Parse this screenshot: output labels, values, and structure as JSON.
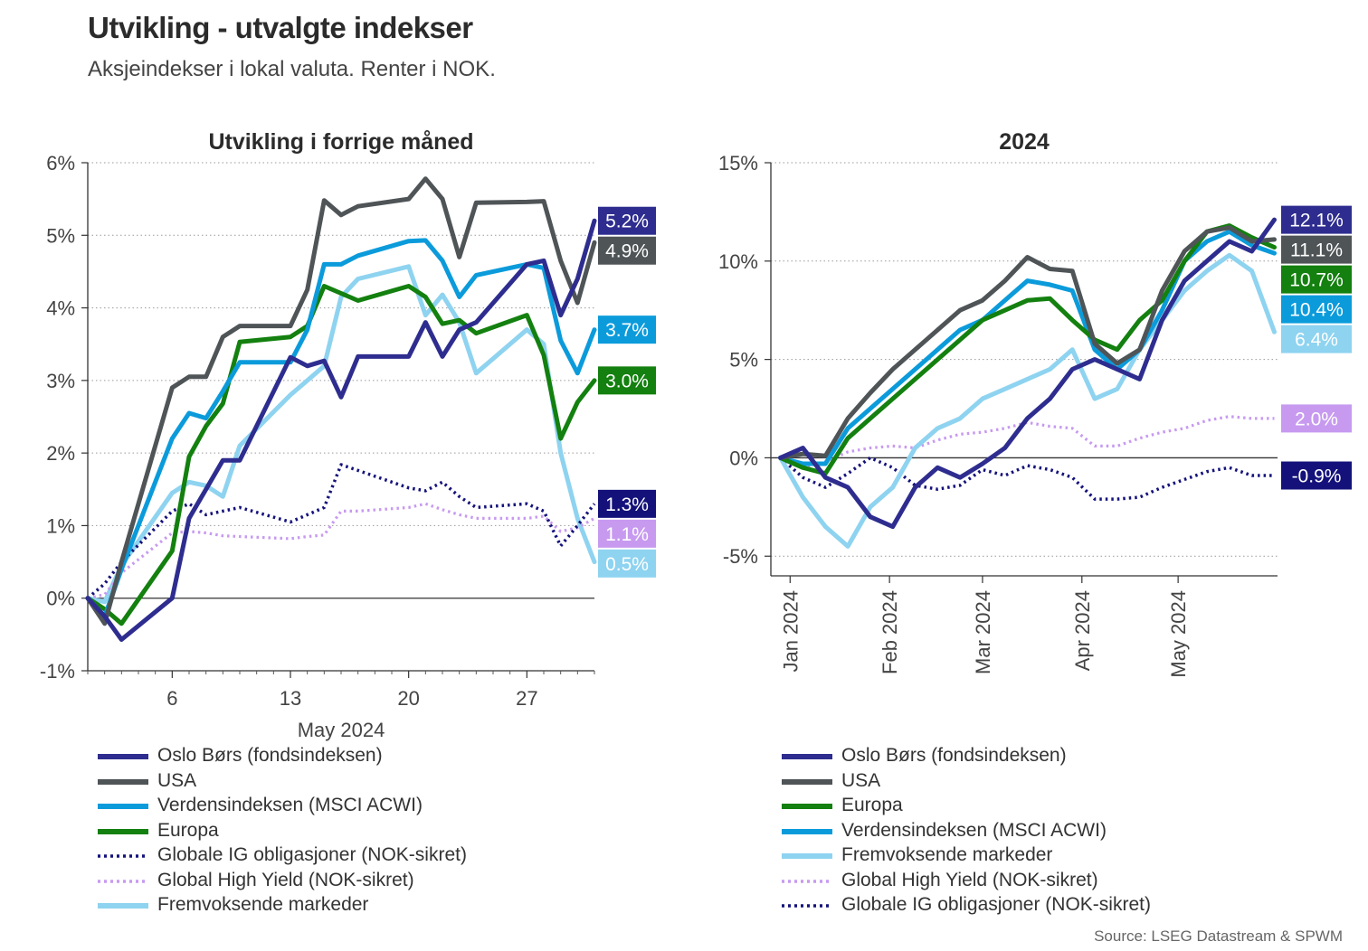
{
  "title": "Utvikling - utvalgte indekser",
  "subtitle": "Aksjeindekser i lokal valuta. Renter i NOK.",
  "source": "Source: LSEG Datastream & SPWM",
  "colors": {
    "oslo": "#2e2d8f",
    "usa": "#4f5457",
    "world": "#0b9bdb",
    "europe": "#13800f",
    "ig": "#14127a",
    "hy": "#c79af0",
    "em": "#8ed3f0"
  },
  "chart_data": [
    {
      "type": "line",
      "title": "Utvikling i forrige måned",
      "xlabel": "May 2024",
      "ylabel": "",
      "x": [
        1,
        2,
        3,
        6,
        7,
        8,
        9,
        10,
        13,
        14,
        15,
        16,
        17,
        20,
        21,
        22,
        23,
        24,
        27,
        28,
        29,
        30,
        31
      ],
      "x_ticks": [
        6,
        13,
        20,
        27
      ],
      "x_tick_labels": [
        "6",
        "13",
        "20",
        "27"
      ],
      "ylim": [
        -1,
        6
      ],
      "y_ticks": [
        -1,
        0,
        1,
        2,
        3,
        4,
        5,
        6
      ],
      "y_tick_labels": [
        "-1%",
        "0%",
        "1%",
        "2%",
        "3%",
        "4%",
        "5%",
        "6%"
      ],
      "grid": true,
      "series": [
        {
          "name": "Oslo Børs (fondsindeksen)",
          "key": "oslo",
          "style": "solid",
          "end_label": "5.2%",
          "values": [
            0.0,
            -0.25,
            -0.57,
            0.0,
            1.1,
            1.5,
            1.9,
            1.9,
            3.32,
            3.2,
            3.27,
            2.77,
            3.33,
            3.33,
            3.8,
            3.33,
            3.7,
            3.8,
            4.6,
            4.65,
            3.9,
            4.4,
            5.2
          ]
        },
        {
          "name": "USA",
          "key": "usa",
          "style": "solid",
          "end_label": "4.9%",
          "values": [
            0.0,
            -0.35,
            0.5,
            2.9,
            3.05,
            3.05,
            3.6,
            3.75,
            3.75,
            4.25,
            5.48,
            5.28,
            5.4,
            5.5,
            5.78,
            5.5,
            4.7,
            5.45,
            5.46,
            5.47,
            4.65,
            4.07,
            4.9
          ]
        },
        {
          "name": "Verdensindeksen (MSCI ACWI)",
          "key": "world",
          "style": "solid",
          "end_label": "3.7%",
          "values": [
            0.0,
            -0.25,
            0.4,
            2.2,
            2.55,
            2.48,
            2.85,
            3.25,
            3.25,
            3.7,
            4.6,
            4.6,
            4.72,
            4.92,
            4.93,
            4.65,
            4.15,
            4.45,
            4.6,
            4.55,
            3.55,
            3.1,
            3.7
          ]
        },
        {
          "name": "Europa",
          "key": "europe",
          "style": "solid",
          "end_label": "3.0%",
          "values": [
            0.0,
            -0.15,
            -0.35,
            0.65,
            1.95,
            2.37,
            2.68,
            3.53,
            3.6,
            3.75,
            4.3,
            4.2,
            4.1,
            4.3,
            4.15,
            3.78,
            3.83,
            3.65,
            3.9,
            3.35,
            2.2,
            2.7,
            3.0
          ]
        },
        {
          "name": "Globale IG obligasjoner (NOK-sikret)",
          "key": "ig",
          "style": "dotted",
          "end_label": "1.3%",
          "values": [
            0.0,
            0.2,
            0.5,
            1.2,
            1.3,
            1.15,
            1.2,
            1.25,
            1.05,
            1.15,
            1.25,
            1.84,
            1.76,
            1.52,
            1.48,
            1.6,
            1.4,
            1.25,
            1.3,
            1.2,
            0.72,
            1.0,
            1.3
          ]
        },
        {
          "name": "Global High Yield (NOK-sikret)",
          "key": "hy",
          "style": "dotted",
          "end_label": "1.1%",
          "values": [
            0.0,
            0.05,
            0.35,
            0.9,
            0.92,
            0.9,
            0.86,
            0.85,
            0.82,
            0.85,
            0.87,
            1.2,
            1.2,
            1.25,
            1.3,
            1.22,
            1.15,
            1.1,
            1.1,
            1.13,
            0.92,
            0.97,
            1.1
          ]
        },
        {
          "name": "Fremvoksende markeder",
          "key": "em",
          "style": "solid",
          "end_label": "0.5%",
          "values": [
            0.0,
            -0.05,
            0.45,
            1.45,
            1.6,
            1.55,
            1.4,
            2.1,
            2.8,
            3.0,
            3.2,
            4.15,
            4.4,
            4.57,
            3.9,
            4.18,
            3.8,
            3.1,
            3.7,
            3.5,
            2.0,
            1.1,
            0.5
          ]
        }
      ],
      "legend_order": [
        "Oslo Børs (fondsindeksen)",
        "USA",
        "Verdensindeksen (MSCI ACWI)",
        "Europa",
        "Globale IG obligasjoner (NOK-sikret)",
        "Global High Yield (NOK-sikret)",
        "Fremvoksende markeder"
      ],
      "legend": "bottom"
    },
    {
      "type": "line",
      "title": "2024",
      "xlabel": "",
      "ylabel": "",
      "x": [
        "2023-12-29",
        "2024-01-05",
        "2024-01-12",
        "2024-01-19",
        "2024-01-26",
        "2024-02-02",
        "2024-02-09",
        "2024-02-16",
        "2024-02-23",
        "2024-03-01",
        "2024-03-08",
        "2024-03-15",
        "2024-03-22",
        "2024-03-29",
        "2024-04-05",
        "2024-04-12",
        "2024-04-19",
        "2024-04-26",
        "2024-05-03",
        "2024-05-10",
        "2024-05-17",
        "2024-05-24",
        "2024-05-31"
      ],
      "x_ticks": [
        "2024-01-01",
        "2024-02-01",
        "2024-03-01",
        "2024-04-01",
        "2024-05-01"
      ],
      "x_tick_labels": [
        "Jan 2024",
        "Feb 2024",
        "Mar 2024",
        "Apr 2024",
        "May 2024"
      ],
      "ylim": [
        -6,
        15
      ],
      "y_ticks": [
        -5,
        0,
        5,
        10,
        15
      ],
      "y_tick_labels": [
        "-5%",
        "0%",
        "5%",
        "10%",
        "15%"
      ],
      "grid": true,
      "series": [
        {
          "name": "Oslo Børs (fondsindeksen)",
          "key": "oslo",
          "style": "solid",
          "end_label": "12.1%",
          "values": [
            0.0,
            0.5,
            -1.0,
            -1.5,
            -3.0,
            -3.5,
            -1.5,
            -0.5,
            -1.0,
            -0.3,
            0.5,
            2.0,
            3.0,
            4.5,
            5.0,
            4.5,
            4.0,
            7.0,
            9.0,
            10.0,
            11.0,
            10.5,
            12.1
          ]
        },
        {
          "name": "USA",
          "key": "usa",
          "style": "solid",
          "end_label": "11.1%",
          "values": [
            0.0,
            0.2,
            0.1,
            2.0,
            3.3,
            4.5,
            5.5,
            6.5,
            7.5,
            8.0,
            9.0,
            10.2,
            9.6,
            9.5,
            5.8,
            4.8,
            5.5,
            8.5,
            10.5,
            11.5,
            11.7,
            11.0,
            11.1
          ]
        },
        {
          "name": "Europa",
          "key": "europe",
          "style": "solid",
          "end_label": "10.7%",
          "values": [
            0.0,
            -0.5,
            -0.8,
            1.0,
            2.0,
            3.0,
            4.0,
            5.0,
            6.0,
            7.0,
            7.5,
            8.0,
            8.1,
            7.0,
            6.0,
            5.5,
            7.0,
            8.0,
            10.0,
            11.5,
            11.8,
            11.2,
            10.7
          ]
        },
        {
          "name": "Verdensindeksen (MSCI ACWI)",
          "key": "world",
          "style": "solid",
          "end_label": "10.4%",
          "values": [
            0.0,
            -0.3,
            -0.3,
            1.5,
            2.5,
            3.5,
            4.5,
            5.5,
            6.5,
            7.0,
            8.0,
            9.0,
            8.8,
            8.5,
            5.5,
            4.5,
            5.5,
            7.5,
            10.0,
            11.0,
            11.5,
            10.8,
            10.4
          ]
        },
        {
          "name": "Fremvoksende markeder",
          "key": "em",
          "style": "solid",
          "end_label": "6.4%",
          "values": [
            0.0,
            -2.0,
            -3.5,
            -4.5,
            -2.5,
            -1.5,
            0.5,
            1.5,
            2.0,
            3.0,
            3.5,
            4.0,
            4.5,
            5.5,
            3.0,
            3.5,
            5.5,
            7.0,
            8.5,
            9.5,
            10.3,
            9.5,
            6.4
          ]
        },
        {
          "name": "Global High Yield (NOK-sikret)",
          "key": "hy",
          "style": "dotted",
          "end_label": "2.0%",
          "values": [
            0.0,
            -0.5,
            -0.2,
            0.3,
            0.5,
            0.6,
            0.5,
            0.9,
            1.2,
            1.3,
            1.5,
            1.8,
            1.6,
            1.5,
            0.6,
            0.6,
            1.0,
            1.3,
            1.5,
            1.9,
            2.1,
            2.0,
            2.0
          ]
        },
        {
          "name": "Globale IG obligasjoner (NOK-sikret)",
          "key": "ig",
          "style": "dotted",
          "end_label": "-0.9%",
          "values": [
            0.0,
            -1.0,
            -1.5,
            -0.8,
            0.0,
            -0.5,
            -1.4,
            -1.6,
            -1.4,
            -0.6,
            -0.9,
            -0.4,
            -0.6,
            -1.0,
            -2.1,
            -2.1,
            -2.0,
            -1.5,
            -1.1,
            -0.7,
            -0.5,
            -0.9,
            -0.9
          ]
        }
      ],
      "legend_order": [
        "Oslo Børs (fondsindeksen)",
        "USA",
        "Europa",
        "Verdensindeksen (MSCI ACWI)",
        "Fremvoksende markeder",
        "Global High Yield (NOK-sikret)",
        "Globale IG obligasjoner (NOK-sikret)"
      ],
      "legend": "bottom"
    }
  ]
}
